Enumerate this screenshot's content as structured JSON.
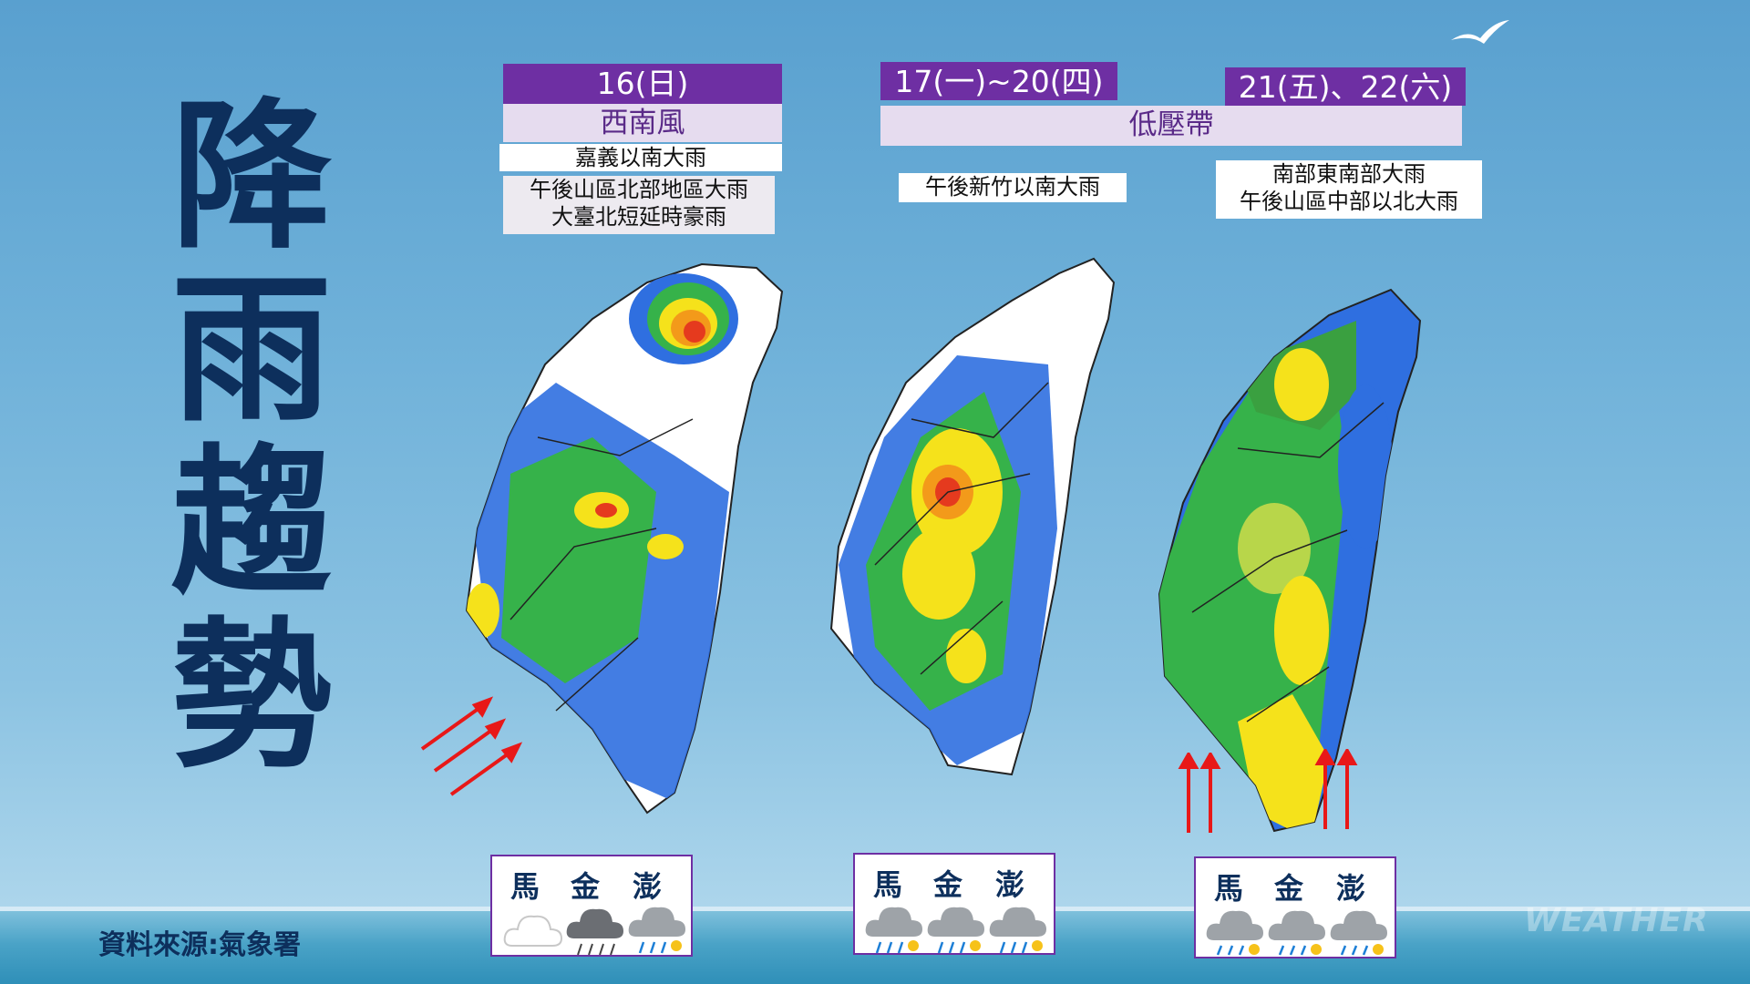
{
  "title_chars": [
    "降",
    "雨",
    "趨",
    "勢"
  ],
  "source": "資料來源:氣象署",
  "logo": "WEATHER",
  "panels": [
    {
      "date": "16(日)",
      "system": "西南風",
      "notes": [
        "嘉義以南大雨",
        "午後山區北部地區大雨",
        "大臺北短延時豪雨"
      ],
      "islands": [
        "馬",
        "金",
        "澎"
      ],
      "weather_icons": [
        "cloudy-icon",
        "rain-cloud-icon",
        "rain-sun-icon"
      ]
    },
    {
      "date": "17(一)~20(四)",
      "system": "低壓帶",
      "notes": [
        "午後新竹以南大雨"
      ],
      "islands": [
        "馬",
        "金",
        "澎"
      ],
      "weather_icons": [
        "rain-sun-icon",
        "rain-sun-icon",
        "rain-sun-icon"
      ]
    },
    {
      "date": "21(五)、22(六)",
      "notes": [
        "南部東南部大雨",
        "午後山區中部以北大雨"
      ],
      "islands": [
        "馬",
        "金",
        "澎"
      ],
      "weather_icons": [
        "rain-sun-icon",
        "rain-sun-icon",
        "rain-sun-icon"
      ]
    }
  ],
  "colors": {
    "title": "#0d2f5c",
    "header_purple": "#6e2fa3",
    "header_lavender": "#e6dcef",
    "arrow": "#e81818"
  }
}
